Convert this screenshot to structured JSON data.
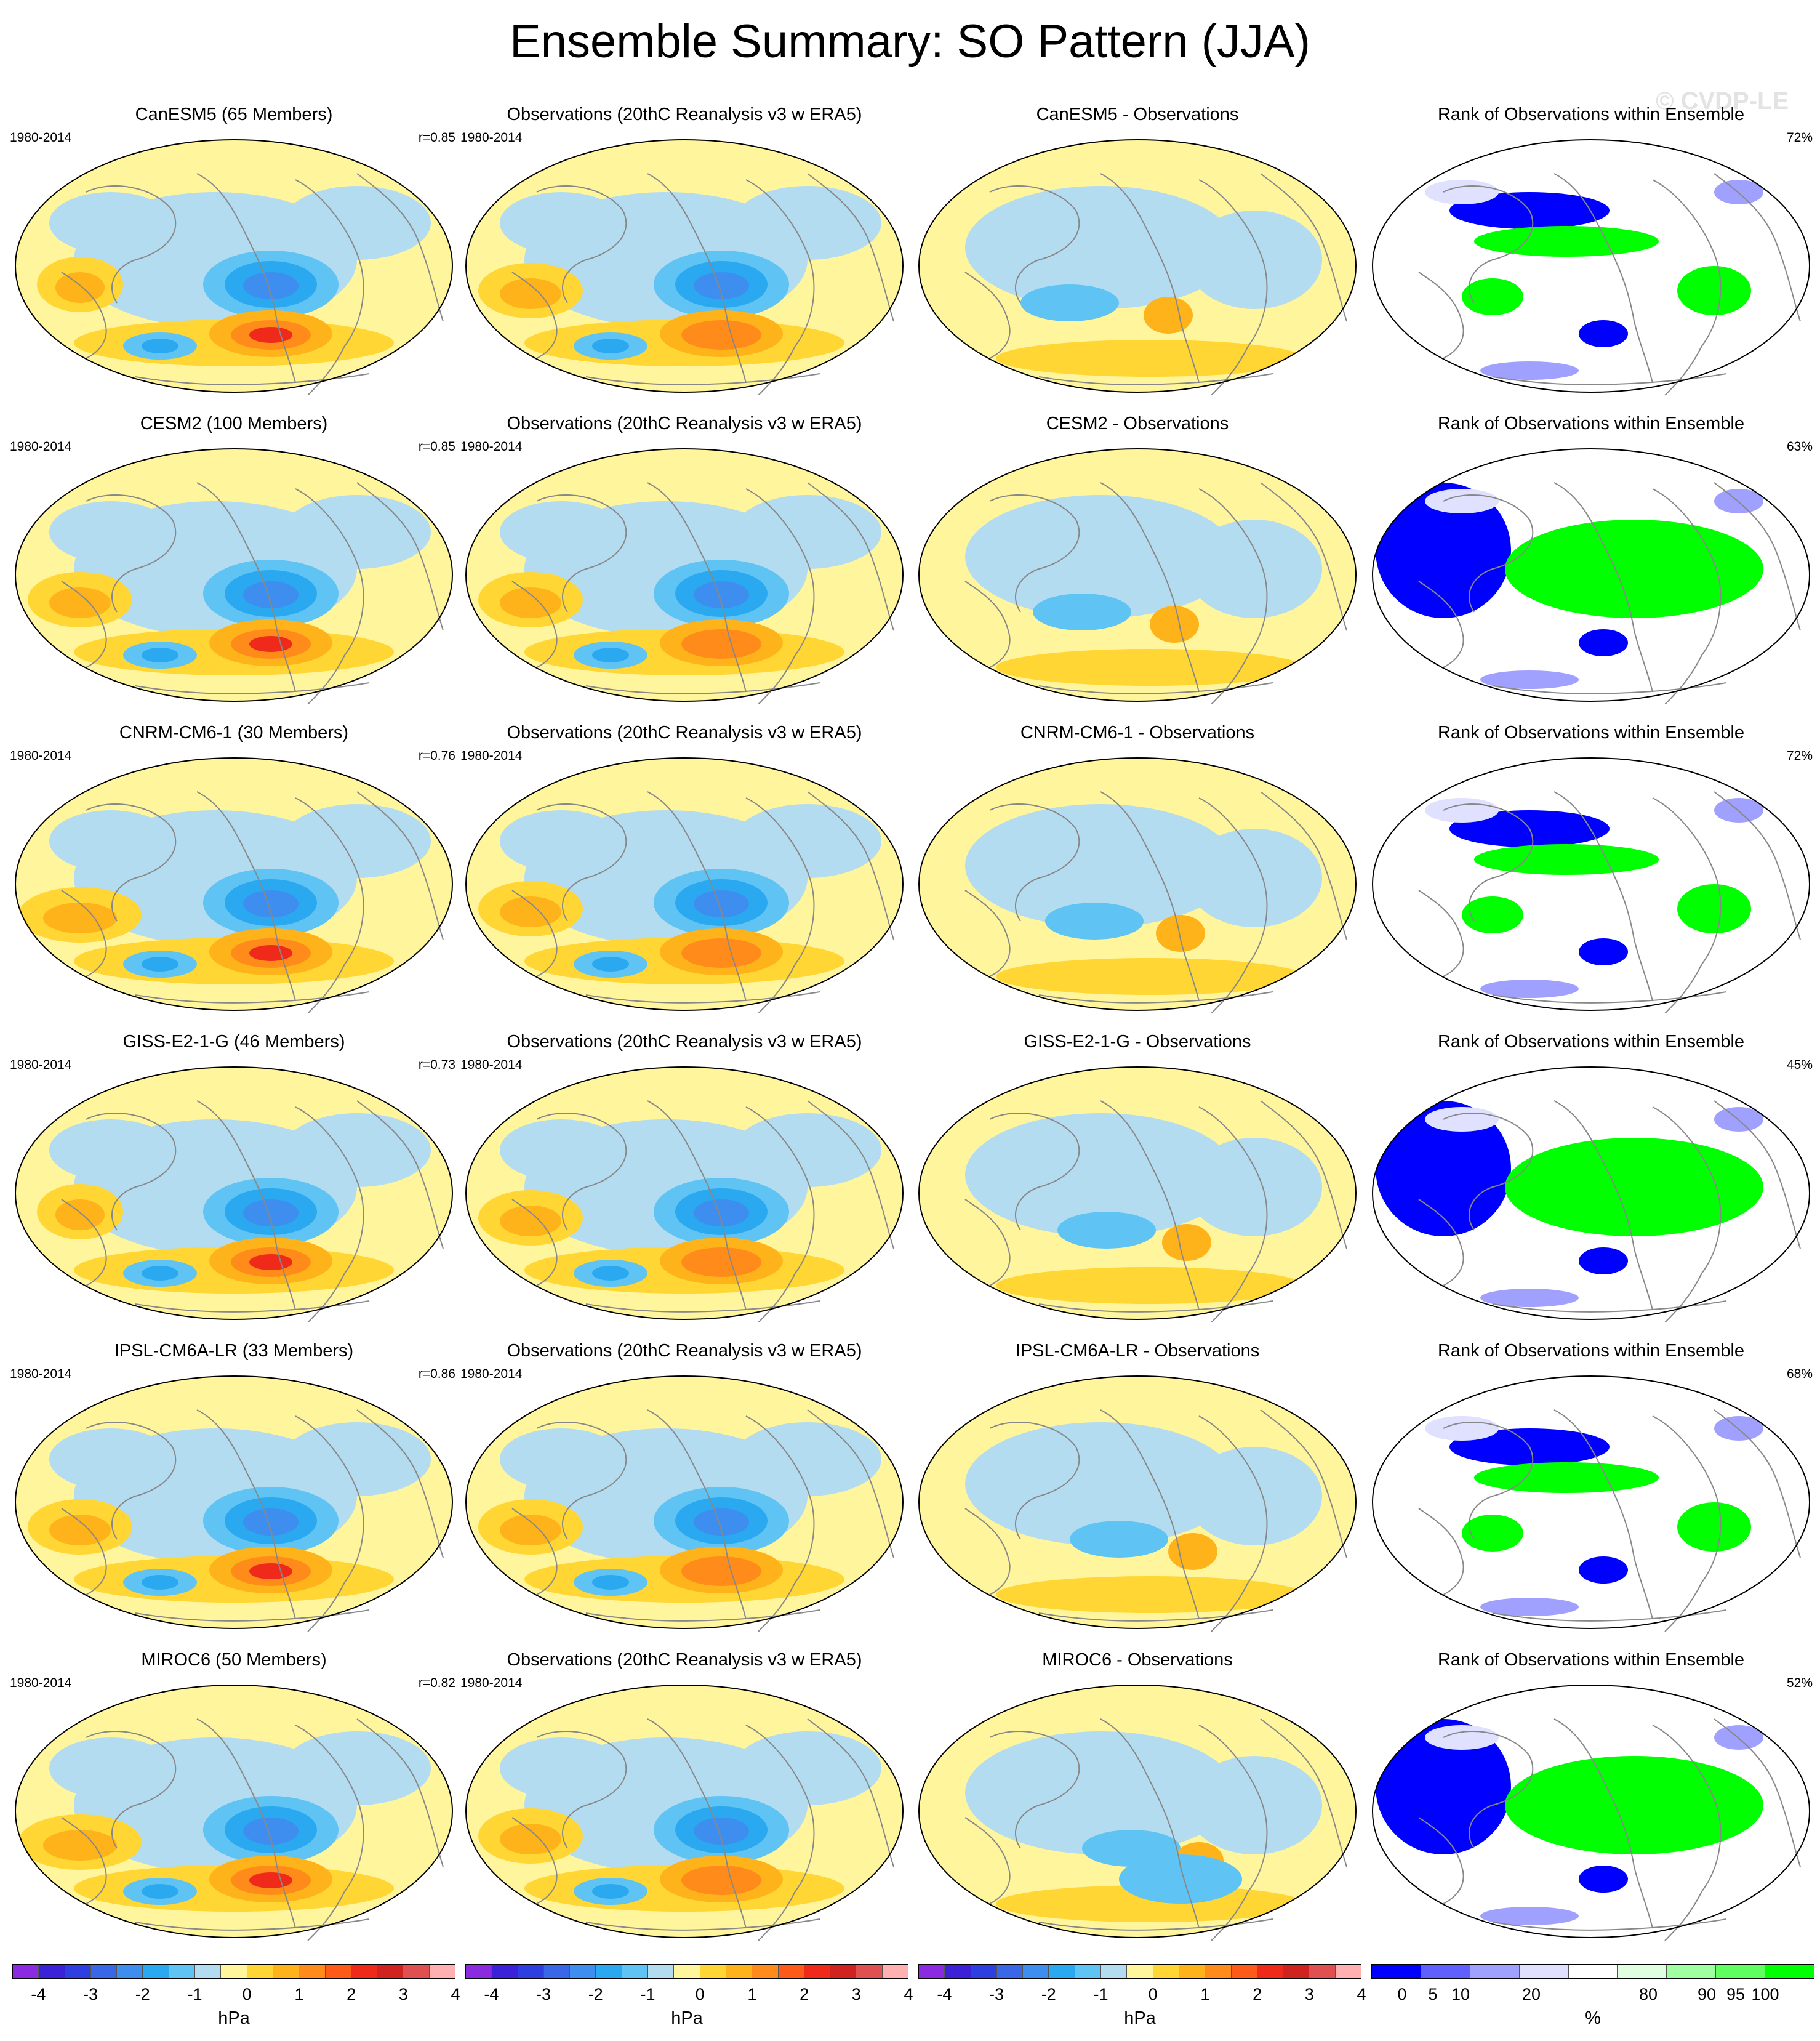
{
  "title": "Ensemble Summary: SO Pattern (JJA)",
  "watermark": "© CVDP-LE",
  "rows": [
    {
      "model_title": "CanESM5 (65 Members)",
      "period": "1980-2014",
      "r": "r=0.85",
      "obs_title": "Observations (20thC Reanalysis v3 w ERA5)",
      "diff_title": "CanESM5 - Observations",
      "rank_title": "Rank of Observations within Ensemble",
      "rank_pct": "72%"
    },
    {
      "model_title": "CESM2 (100 Members)",
      "period": "1980-2014",
      "r": "r=0.85",
      "obs_title": "Observations (20thC Reanalysis v3 w ERA5)",
      "diff_title": "CESM2 - Observations",
      "rank_title": "Rank of Observations within Ensemble",
      "rank_pct": "63%"
    },
    {
      "model_title": "CNRM-CM6-1 (30 Members)",
      "period": "1980-2014",
      "r": "r=0.76",
      "obs_title": "Observations (20thC Reanalysis v3 w ERA5)",
      "diff_title": "CNRM-CM6-1 - Observations",
      "rank_title": "Rank of Observations within Ensemble",
      "rank_pct": "72%"
    },
    {
      "model_title": "GISS-E2-1-G (46 Members)",
      "period": "1980-2014",
      "r": "r=0.73",
      "obs_title": "Observations (20thC Reanalysis v3 w ERA5)",
      "diff_title": "GISS-E2-1-G - Observations",
      "rank_title": "Rank of Observations within Ensemble",
      "rank_pct": "45%"
    },
    {
      "model_title": "IPSL-CM6A-LR (33 Members)",
      "period": "1980-2014",
      "r": "r=0.86",
      "obs_title": "Observations (20thC Reanalysis v3 w ERA5)",
      "diff_title": "IPSL-CM6A-LR - Observations",
      "rank_title": "Rank of Observations within Ensemble",
      "rank_pct": "68%"
    },
    {
      "model_title": "MIROC6 (50 Members)",
      "period": "1980-2014",
      "r": "r=0.82",
      "obs_title": "Observations (20thC Reanalysis v3 w ERA5)",
      "diff_title": "MIROC6 - Observations",
      "rank_title": "Rank of Observations within Ensemble",
      "rank_pct": "52%"
    }
  ],
  "colors": {
    "hpa_scale": [
      "#8a2be2",
      "#3b22d8",
      "#2d3fe0",
      "#3a66e8",
      "#3e8ef0",
      "#2aa9f0",
      "#5fc4f3",
      "#b4dcf0",
      "#fff59d",
      "#ffd633",
      "#ffb31a",
      "#ff8c1a",
      "#ff5a1a",
      "#f02a1a",
      "#d0221e",
      "#e05050",
      "#ffb0b0"
    ],
    "rank_scale": [
      "#0000ff",
      "#6060ff",
      "#a0a0ff",
      "#e0e0ff",
      "#ffffff",
      "#e0ffe0",
      "#a0ffa0",
      "#60ff60",
      "#00ff00"
    ],
    "land_outline": "#888888"
  },
  "colorbars": [
    {
      "ticks": [
        "-4",
        "-3",
        "-2",
        "-1",
        "0",
        "1",
        "2",
        "3",
        "4"
      ],
      "unit": "hPa"
    },
    {
      "ticks": [
        "-4",
        "-3",
        "-2",
        "-1",
        "0",
        "1",
        "2",
        "3",
        "4"
      ],
      "unit": "hPa"
    },
    {
      "ticks": [
        "-4",
        "-3",
        "-2",
        "-1",
        "0",
        "1",
        "2",
        "3",
        "4"
      ],
      "unit": "hPa"
    },
    {
      "ticks": [
        "0",
        "5",
        "10",
        "20",
        "80",
        "90",
        "95",
        "100"
      ],
      "unit": "%"
    }
  ],
  "chart_data": {
    "type": "heatmap",
    "title": "Ensemble Summary: SO Pattern (JJA)",
    "projection": "global",
    "columns": [
      "model ensemble-mean SO pattern",
      "observations",
      "model minus observations",
      "rank of observations within ensemble"
    ],
    "models": [
      "CanESM5",
      "CESM2",
      "CNRM-CM6-1",
      "GISS-E2-1-G",
      "IPSL-CM6A-LR",
      "MIROC6"
    ],
    "members": [
      65,
      100,
      30,
      46,
      33,
      50
    ],
    "pattern_correlation": [
      0.85,
      0.85,
      0.76,
      0.73,
      0.86,
      0.82
    ],
    "rank_area_pct": [
      72,
      63,
      72,
      45,
      68,
      52
    ],
    "hpa_levels": [
      -4.5,
      -4,
      -3.5,
      -3,
      -2.5,
      -2,
      -1.5,
      -1,
      -0.5,
      0,
      0.5,
      1,
      1.5,
      2,
      2.5,
      3,
      3.5,
      4,
      4.5
    ],
    "rank_levels": [
      0,
      5,
      10,
      20,
      80,
      90,
      95,
      100
    ],
    "units": [
      "hPa",
      "%"
    ]
  }
}
